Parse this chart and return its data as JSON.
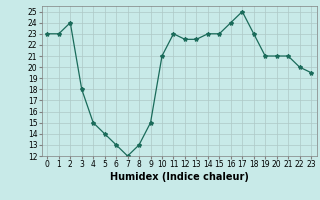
{
  "x": [
    0,
    1,
    2,
    3,
    4,
    5,
    6,
    7,
    8,
    9,
    10,
    11,
    12,
    13,
    14,
    15,
    16,
    17,
    18,
    19,
    20,
    21,
    22,
    23
  ],
  "y": [
    23,
    23,
    24,
    18,
    15,
    14,
    13,
    12,
    13,
    15,
    21,
    23,
    22.5,
    22.5,
    23,
    23,
    24,
    25,
    23,
    21,
    21,
    21,
    20,
    19.5
  ],
  "line_color": "#1a6b5a",
  "marker": "*",
  "marker_size": 3,
  "bg_color": "#c8eae8",
  "grid_color": "#aec8c6",
  "xlabel": "Humidex (Indice chaleur)",
  "xlim": [
    -0.5,
    23.5
  ],
  "ylim": [
    12,
    25.5
  ],
  "yticks": [
    12,
    13,
    14,
    15,
    16,
    17,
    18,
    19,
    20,
    21,
    22,
    23,
    24,
    25
  ],
  "xticks": [
    0,
    1,
    2,
    3,
    4,
    5,
    6,
    7,
    8,
    9,
    10,
    11,
    12,
    13,
    14,
    15,
    16,
    17,
    18,
    19,
    20,
    21,
    22,
    23
  ],
  "tick_fontsize": 5.5,
  "label_fontsize": 7
}
